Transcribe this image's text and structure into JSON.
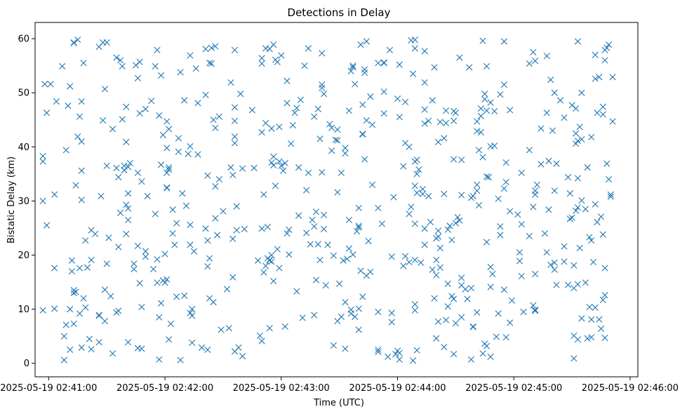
{
  "chart_data": {
    "type": "scatter",
    "title": "Detections in Delay",
    "xlabel": "Time (UTC)",
    "ylabel": "Bistatic Delay (km)",
    "x_axis_type": "time",
    "xlim": [
      "2025-05-19 02:40:53",
      "2025-05-19 02:46:04"
    ],
    "ylim": [
      -2.5,
      63
    ],
    "x_ticks": [
      "2025-05-19 02:41:00",
      "2025-05-19 02:42:00",
      "2025-05-19 02:43:00",
      "2025-05-19 02:44:00",
      "2025-05-19 02:45:00",
      "2025-05-19 02:46:00"
    ],
    "y_ticks": [
      0,
      10,
      20,
      30,
      40,
      50,
      60
    ],
    "grid": false,
    "legend": "none",
    "marker": "x",
    "color": "#1f77b4",
    "note_points": "Approximately 600 detections spread uniformly between 02:40:56 and 02:45:52 with delays between 0.5 and 60 km; sampled approximation below.",
    "points": []
  }
}
